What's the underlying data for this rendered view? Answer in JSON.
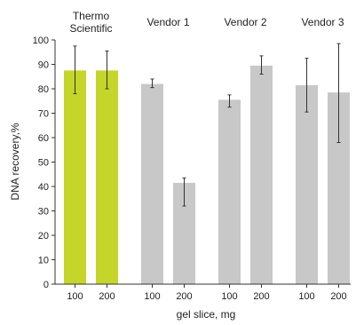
{
  "chart_data": {
    "type": "bar",
    "title": "",
    "xlabel": "gel slice, mg",
    "ylabel": "DNA recovery,%",
    "ylim": [
      0,
      100
    ],
    "yticks": [
      0,
      10,
      20,
      30,
      40,
      50,
      60,
      70,
      80,
      90,
      100
    ],
    "grid": false,
    "groups": [
      {
        "name_lines": [
          "Thermo",
          "Scientific"
        ],
        "color": "#c5d52a",
        "bars": [
          {
            "x": "100",
            "value": 87.5,
            "err_low": 78,
            "err_high": 97.5
          },
          {
            "x": "200",
            "value": 87.5,
            "err_low": 80,
            "err_high": 95.5
          }
        ]
      },
      {
        "name_lines": [
          "Vendor 1"
        ],
        "color": "#c8c8c8",
        "bars": [
          {
            "x": "100",
            "value": 82,
            "err_low": 80.5,
            "err_high": 84
          },
          {
            "x": "200",
            "value": 41.5,
            "err_low": 32,
            "err_high": 43.5
          }
        ]
      },
      {
        "name_lines": [
          "Vendor 2"
        ],
        "color": "#c8c8c8",
        "bars": [
          {
            "x": "100",
            "value": 75.5,
            "err_low": 72.5,
            "err_high": 77.5
          },
          {
            "x": "200",
            "value": 89.5,
            "err_low": 86,
            "err_high": 93.5
          }
        ]
      },
      {
        "name_lines": [
          "Vendor 3"
        ],
        "color": "#c8c8c8",
        "bars": [
          {
            "x": "100",
            "value": 81.5,
            "err_low": 70.5,
            "err_high": 92.5
          },
          {
            "x": "200",
            "value": 78.5,
            "err_low": 58,
            "err_high": 98.5
          }
        ]
      }
    ]
  }
}
